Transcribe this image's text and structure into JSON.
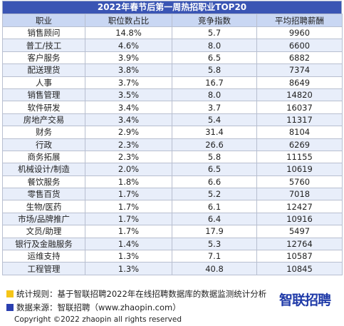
{
  "chart_data": {
    "type": "table",
    "title": "2022年春节后第一周热招职业TOP20",
    "columns": [
      "职业",
      "职位数占比",
      "竞争指数",
      "平均招聘薪酬"
    ],
    "rows": [
      [
        "销售顾问",
        "14.8%",
        "5.7",
        "9960"
      ],
      [
        "普工/技工",
        "4.6%",
        "8.0",
        "6600"
      ],
      [
        "客户服务",
        "3.9%",
        "6.5",
        "6882"
      ],
      [
        "配送理货",
        "3.8%",
        "5.8",
        "7374"
      ],
      [
        "人事",
        "3.7%",
        "16.7",
        "8649"
      ],
      [
        "销售管理",
        "3.5%",
        "8.0",
        "14820"
      ],
      [
        "软件研发",
        "3.4%",
        "3.7",
        "16037"
      ],
      [
        "房地产交易",
        "3.4%",
        "5.4",
        "11317"
      ],
      [
        "财务",
        "2.9%",
        "31.4",
        "8104"
      ],
      [
        "行政",
        "2.3%",
        "26.6",
        "6269"
      ],
      [
        "商务拓展",
        "2.3%",
        "5.8",
        "11155"
      ],
      [
        "机械设计/制造",
        "2.0%",
        "6.5",
        "10619"
      ],
      [
        "餐饮服务",
        "1.8%",
        "6.6",
        "5760"
      ],
      [
        "零售百货",
        "1.7%",
        "5.2",
        "7018"
      ],
      [
        "生物/医药",
        "1.7%",
        "6.1",
        "12427"
      ],
      [
        "市场/品牌推广",
        "1.7%",
        "6.4",
        "10916"
      ],
      [
        "文员/助理",
        "1.7%",
        "17.9",
        "5497"
      ],
      [
        "银行及金融服务",
        "1.4%",
        "5.3",
        "12764"
      ],
      [
        "运维支持",
        "1.3%",
        "7.1",
        "10587"
      ],
      [
        "工程管理",
        "1.3%",
        "40.8",
        "10845"
      ]
    ]
  },
  "footer": {
    "rule_note": "统计规则：基于智联招聘2022年在线招聘数据库的数据监测统计分析",
    "source_note": "数据来源：智联招聘（www.zhaopin.com）",
    "copyright": "Copyright ©2022 zhaopin all rights reserved",
    "logo_text": "智联招聘"
  },
  "colors": {
    "title_bg": "#3a55b4",
    "header_bg": "#c9d7f3",
    "row_alt_bg": "#e8eefa",
    "rule_square": "#f5c518",
    "source_square": "#2a3fb0",
    "logo": "#1f3aa8"
  }
}
